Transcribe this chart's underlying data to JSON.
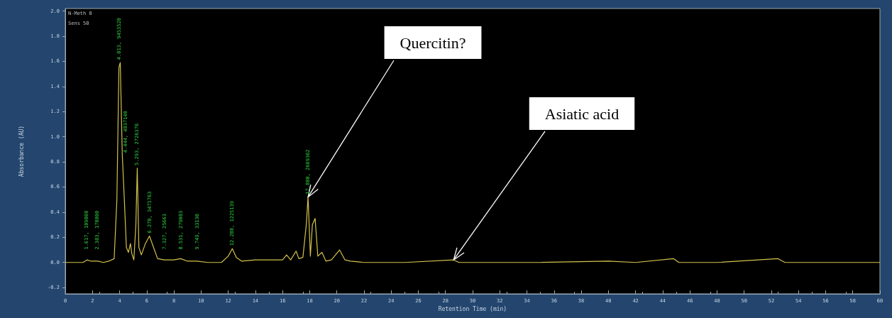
{
  "chart_data": {
    "type": "line",
    "xlabel": "Retention Time (min)",
    "ylabel": "Absorbance (AU)",
    "x": [
      0,
      1.3,
      1.6,
      1.9,
      2.4,
      2.8,
      3.2,
      3.6,
      3.8,
      3.95,
      4.05,
      4.2,
      4.35,
      4.5,
      4.65,
      4.8,
      4.9,
      5.05,
      5.2,
      5.3,
      5.42,
      5.6,
      5.9,
      6.2,
      6.5,
      6.8,
      7.3,
      8,
      8.5,
      9,
      9.7,
      10.5,
      11.5,
      12,
      12.3,
      12.6,
      13,
      14,
      15,
      16,
      16.3,
      16.6,
      17,
      17.2,
      17.5,
      17.75,
      17.88,
      18.05,
      18.2,
      18.4,
      18.6,
      18.9,
      19.2,
      19.6,
      20.2,
      20.6,
      21,
      22,
      25,
      28.6,
      29,
      31,
      35,
      40,
      42,
      44.8,
      45.2,
      48,
      52.5,
      53,
      55,
      58,
      60
    ],
    "series": [
      {
        "color": "#d4c24a",
        "values": [
          0,
          0,
          0.02,
          0.01,
          0.01,
          0,
          0.01,
          0.03,
          0.5,
          1.55,
          1.59,
          0.85,
          0.5,
          0.12,
          0.08,
          0.15,
          0.07,
          0.02,
          0.3,
          0.75,
          0.12,
          0.06,
          0.15,
          0.21,
          0.12,
          0.03,
          0.02,
          0.02,
          0.03,
          0.01,
          0.01,
          0,
          0,
          0.05,
          0.11,
          0.04,
          0.01,
          0.02,
          0.02,
          0.02,
          0.06,
          0.02,
          0.09,
          0.03,
          0.04,
          0.3,
          0.52,
          0.05,
          0.3,
          0.35,
          0.05,
          0.08,
          0.01,
          0.02,
          0.1,
          0.02,
          0.01,
          0,
          0,
          0.02,
          0,
          0,
          0,
          0.01,
          0,
          0.03,
          0,
          0,
          0.03,
          0,
          0,
          0,
          0
        ]
      }
    ],
    "xlim": [
      0,
      60
    ],
    "xticks": [
      0,
      2,
      4,
      6,
      8,
      10,
      12,
      14,
      16,
      18,
      20,
      22,
      24,
      26,
      28,
      30,
      32,
      34,
      36,
      38,
      40,
      42,
      44,
      46,
      48,
      50,
      52,
      54,
      56,
      58,
      60
    ],
    "ylim": [
      -0.25,
      2.02
    ],
    "yticks": [
      -0.2,
      {
        "value": 0,
        "label": "0.0"
      },
      0.2,
      0.4,
      0.6,
      0.8,
      {
        "value": 1,
        "label": "1.0"
      },
      1.2,
      1.4,
      1.6,
      1.8,
      {
        "value": 2,
        "label": "2.0"
      }
    ],
    "grid": false,
    "marker": "none",
    "line_style": "solid",
    "annotations": [
      "N-Meth 0",
      "Sens 50",
      {
        "text": "Quercitin?",
        "x": 17.88,
        "y": 0.52
      },
      {
        "text": "Asiatic acid",
        "x": 28.6,
        "y": 0.02
      },
      {
        "text": "1.617, 109808",
        "x": 1.617,
        "y": 0.02
      },
      {
        "text": "2.383, 178800",
        "x": 2.383,
        "y": 0.01
      },
      {
        "text": "4.013, 9453520",
        "x": 4.013,
        "y": 1.59
      },
      {
        "text": "4.444, 4837148",
        "x": 4.444,
        "y": 0.85
      },
      {
        "text": "5.293, 2726376",
        "x": 5.293,
        "y": 0.75
      },
      {
        "text": "6.270, 3471763",
        "x": 6.27,
        "y": 0.21
      },
      {
        "text": "7.327, 25663",
        "x": 7.327,
        "y": 0.02
      },
      {
        "text": "8.531, 279083",
        "x": 8.531,
        "y": 0.03
      },
      {
        "text": "9.749, 33130",
        "x": 9.749,
        "y": 0.01
      },
      {
        "text": "12.288, 1225139",
        "x": 12.288,
        "y": 0.11
      },
      {
        "text": "17.880, 2669362",
        "x": 17.88,
        "y": 0.52
      }
    ]
  }
}
